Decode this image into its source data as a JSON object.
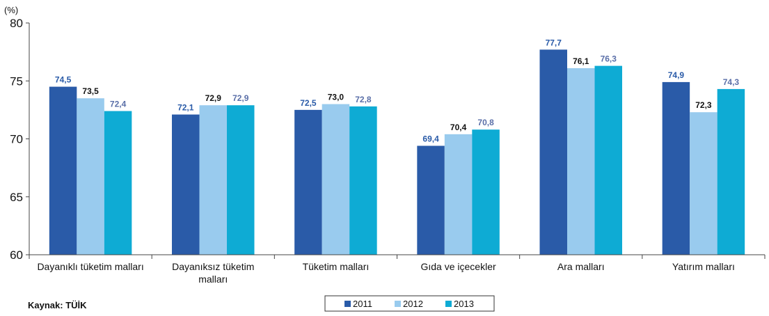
{
  "chart_data": {
    "type": "bar",
    "unit_label": "(%)",
    "categories": [
      [
        "Dayanıklı tüketim malları"
      ],
      [
        "Dayanıksız tüketim",
        "malları"
      ],
      [
        "Tüketim malları"
      ],
      [
        "Gıda ve içecekler"
      ],
      [
        "Ara malları"
      ],
      [
        "Yatırım malları"
      ]
    ],
    "series": [
      {
        "name": "2011",
        "color": "#2a5ba8",
        "label_color": "#2a5ba8",
        "values": [
          74.5,
          72.1,
          72.5,
          69.4,
          77.7,
          74.9
        ],
        "labels": [
          "74,5",
          "72,1",
          "72,5",
          "69,4",
          "77,7",
          "74,9"
        ]
      },
      {
        "name": "2012",
        "color": "#99cbee",
        "label_color": "#111111",
        "values": [
          73.5,
          72.9,
          73.0,
          70.4,
          76.1,
          72.3
        ],
        "labels": [
          "73,5",
          "72,9",
          "73,0",
          "70,4",
          "76,1",
          "72,3"
        ]
      },
      {
        "name": "2013",
        "color": "#0eabd4",
        "label_color": "#5a6fa8",
        "values": [
          72.4,
          72.9,
          72.8,
          70.8,
          76.3,
          74.3
        ],
        "labels": [
          "72,4",
          "72,9",
          "72,8",
          "70,8",
          "76,3",
          "74,3"
        ]
      }
    ],
    "ylim": [
      60,
      80
    ],
    "yticks": [
      60,
      65,
      70,
      75,
      80
    ],
    "grid": false,
    "legend": "bottom-center",
    "source": "Kaynak: TÜİK"
  }
}
